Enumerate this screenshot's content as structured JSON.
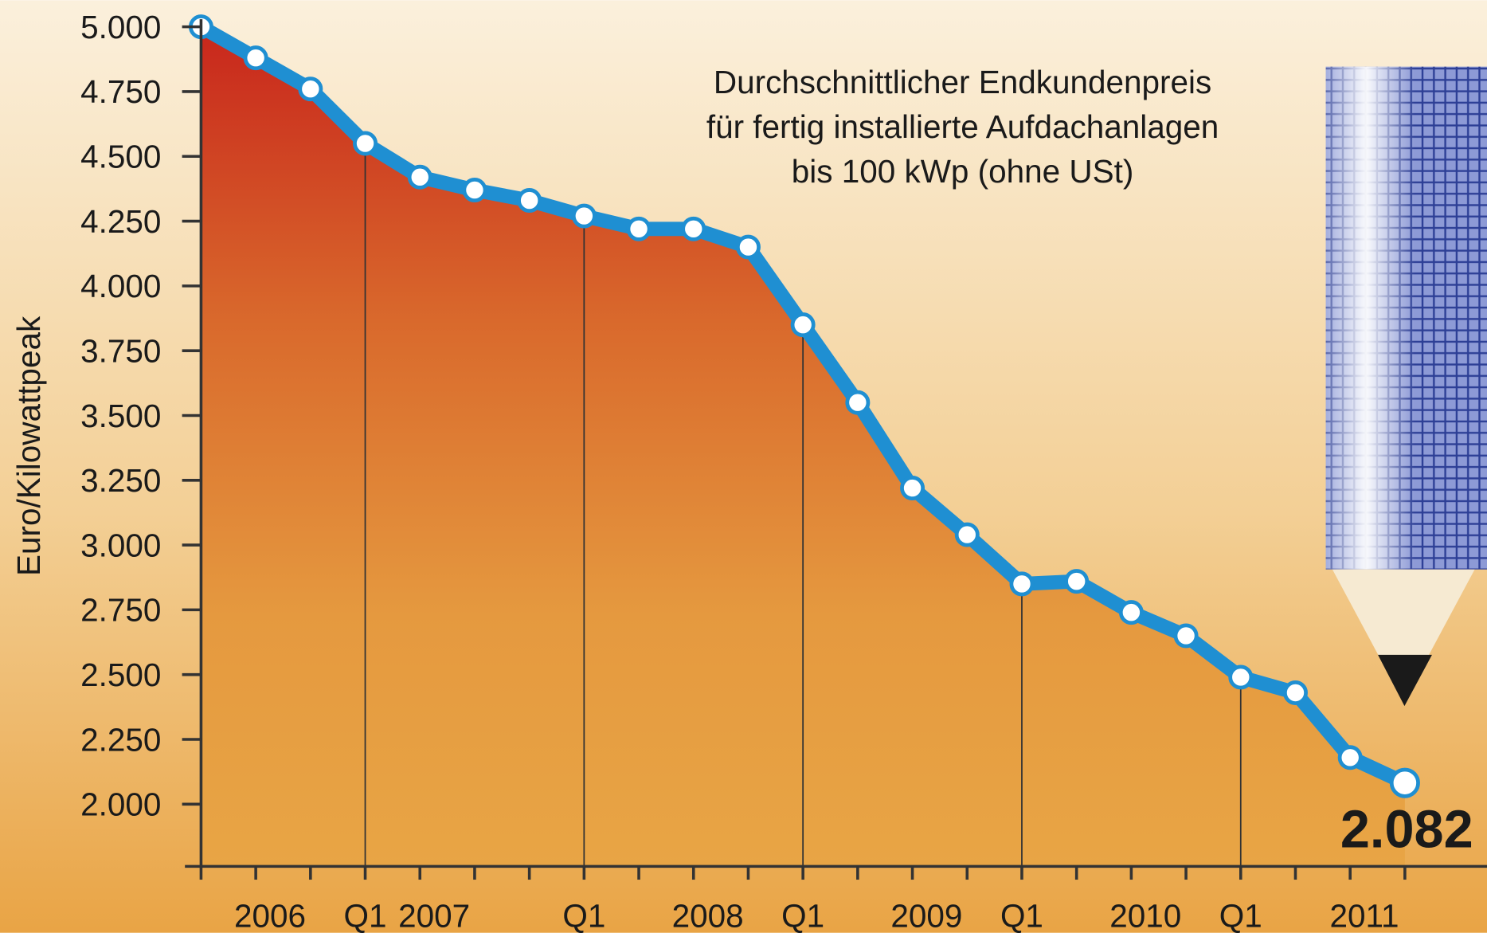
{
  "chart_data": {
    "type": "line",
    "title": [
      "Durchschnittlicher Endkundenpreis",
      "für fertig installierte Aufdachanlagen",
      "bis 100 kWp (ohne USt)"
    ],
    "y_label": "Euro/Kilowattpeak",
    "categories": [
      null,
      "2006",
      null,
      "Q1",
      "2007",
      null,
      null,
      "Q1",
      null,
      "2008",
      null,
      "Q1",
      null,
      "2009",
      null,
      "Q1",
      null,
      "2010",
      null,
      "Q1",
      null,
      "2011",
      null
    ],
    "series": [
      {
        "name": null,
        "color": "#1f8fd2",
        "values": [
          5000,
          4880,
          4760,
          4550,
          4420,
          4370,
          4330,
          4270,
          4220,
          4220,
          4150,
          3850,
          3550,
          3220,
          3040,
          2850,
          2860,
          2740,
          2650,
          2490,
          2430,
          2180,
          2082
        ],
        "value_labels": [
          null,
          null,
          null,
          null,
          null,
          null,
          null,
          null,
          null,
          null,
          null,
          null,
          null,
          null,
          null,
          null,
          null,
          null,
          null,
          null,
          null,
          null,
          "2.082"
        ]
      }
    ],
    "ylim": [
      1760,
      5100
    ],
    "yticks": [
      {
        "value": 2000,
        "label": "2.000"
      },
      {
        "value": 2250,
        "label": "2.250"
      },
      {
        "value": 2500,
        "label": "2.500"
      },
      {
        "value": 2750,
        "label": "2.750"
      },
      {
        "value": 3000,
        "label": "3.000"
      },
      {
        "value": 3250,
        "label": "3.250"
      },
      {
        "value": 3500,
        "label": "3.500"
      },
      {
        "value": 3750,
        "label": "3.750"
      },
      {
        "value": 4000,
        "label": "4.000"
      },
      {
        "value": 4250,
        "label": "4.250"
      },
      {
        "value": 4500,
        "label": "4.500"
      },
      {
        "value": 4750,
        "label": "4.750"
      },
      {
        "value": 5000,
        "label": "5.000"
      }
    ],
    "area_fill": true,
    "grid": false
  }
}
